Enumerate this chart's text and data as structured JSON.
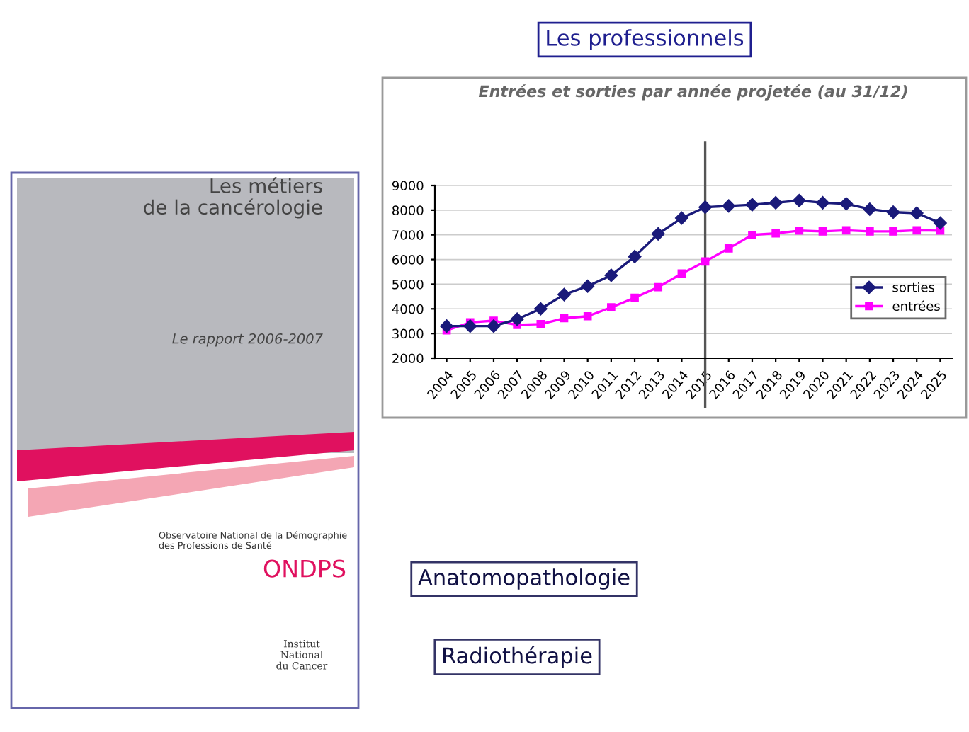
{
  "chart_data": {
    "type": "line",
    "title": "Entrées et sorties par année projetée (au 31/12)",
    "categories": [
      "2004",
      "2005",
      "2006",
      "2007",
      "2008",
      "2009",
      "2010",
      "2011",
      "2012",
      "2013",
      "2014",
      "2015",
      "2016",
      "2017",
      "2018",
      "2019",
      "2020",
      "2021",
      "2022",
      "2023",
      "2024",
      "2025"
    ],
    "series": [
      {
        "name": "sorties",
        "color": "#1a1a7a",
        "marker": "diamond",
        "values": [
          3300,
          3300,
          3300,
          3580,
          4000,
          4580,
          4920,
          5360,
          6120,
          7040,
          7680,
          8120,
          8170,
          8220,
          8300,
          8390,
          8300,
          8260,
          8040,
          7920,
          7880,
          7480
        ]
      },
      {
        "name": "entrées",
        "color": "#ff00ff",
        "marker": "square",
        "values": [
          3130,
          3450,
          3520,
          3350,
          3380,
          3620,
          3700,
          4060,
          4450,
          4880,
          5430,
          5920,
          6450,
          7000,
          7060,
          7170,
          7140,
          7180,
          7140,
          7140,
          7180,
          7170
        ]
      }
    ],
    "ylim": [
      2000,
      9000
    ],
    "yticks": [
      2000,
      3000,
      4000,
      5000,
      6000,
      7000,
      8000,
      9000
    ],
    "grid": "y",
    "legend": "right",
    "line_style": "solid",
    "ref_lines": [
      {
        "axis": "x",
        "value": "2015",
        "label": null,
        "color": "#555555"
      }
    ],
    "annotations": [
      "Les professionnels",
      "Les métiers\nde la cancérologie",
      "Le rapport 2006-2007",
      "Observatoire National de la Démographie\ndes Professions de Santé",
      "ONDPS",
      "Institut\nNational\ndu Cancer",
      "Anatomopathologie",
      "Radiothérapie"
    ]
  }
}
